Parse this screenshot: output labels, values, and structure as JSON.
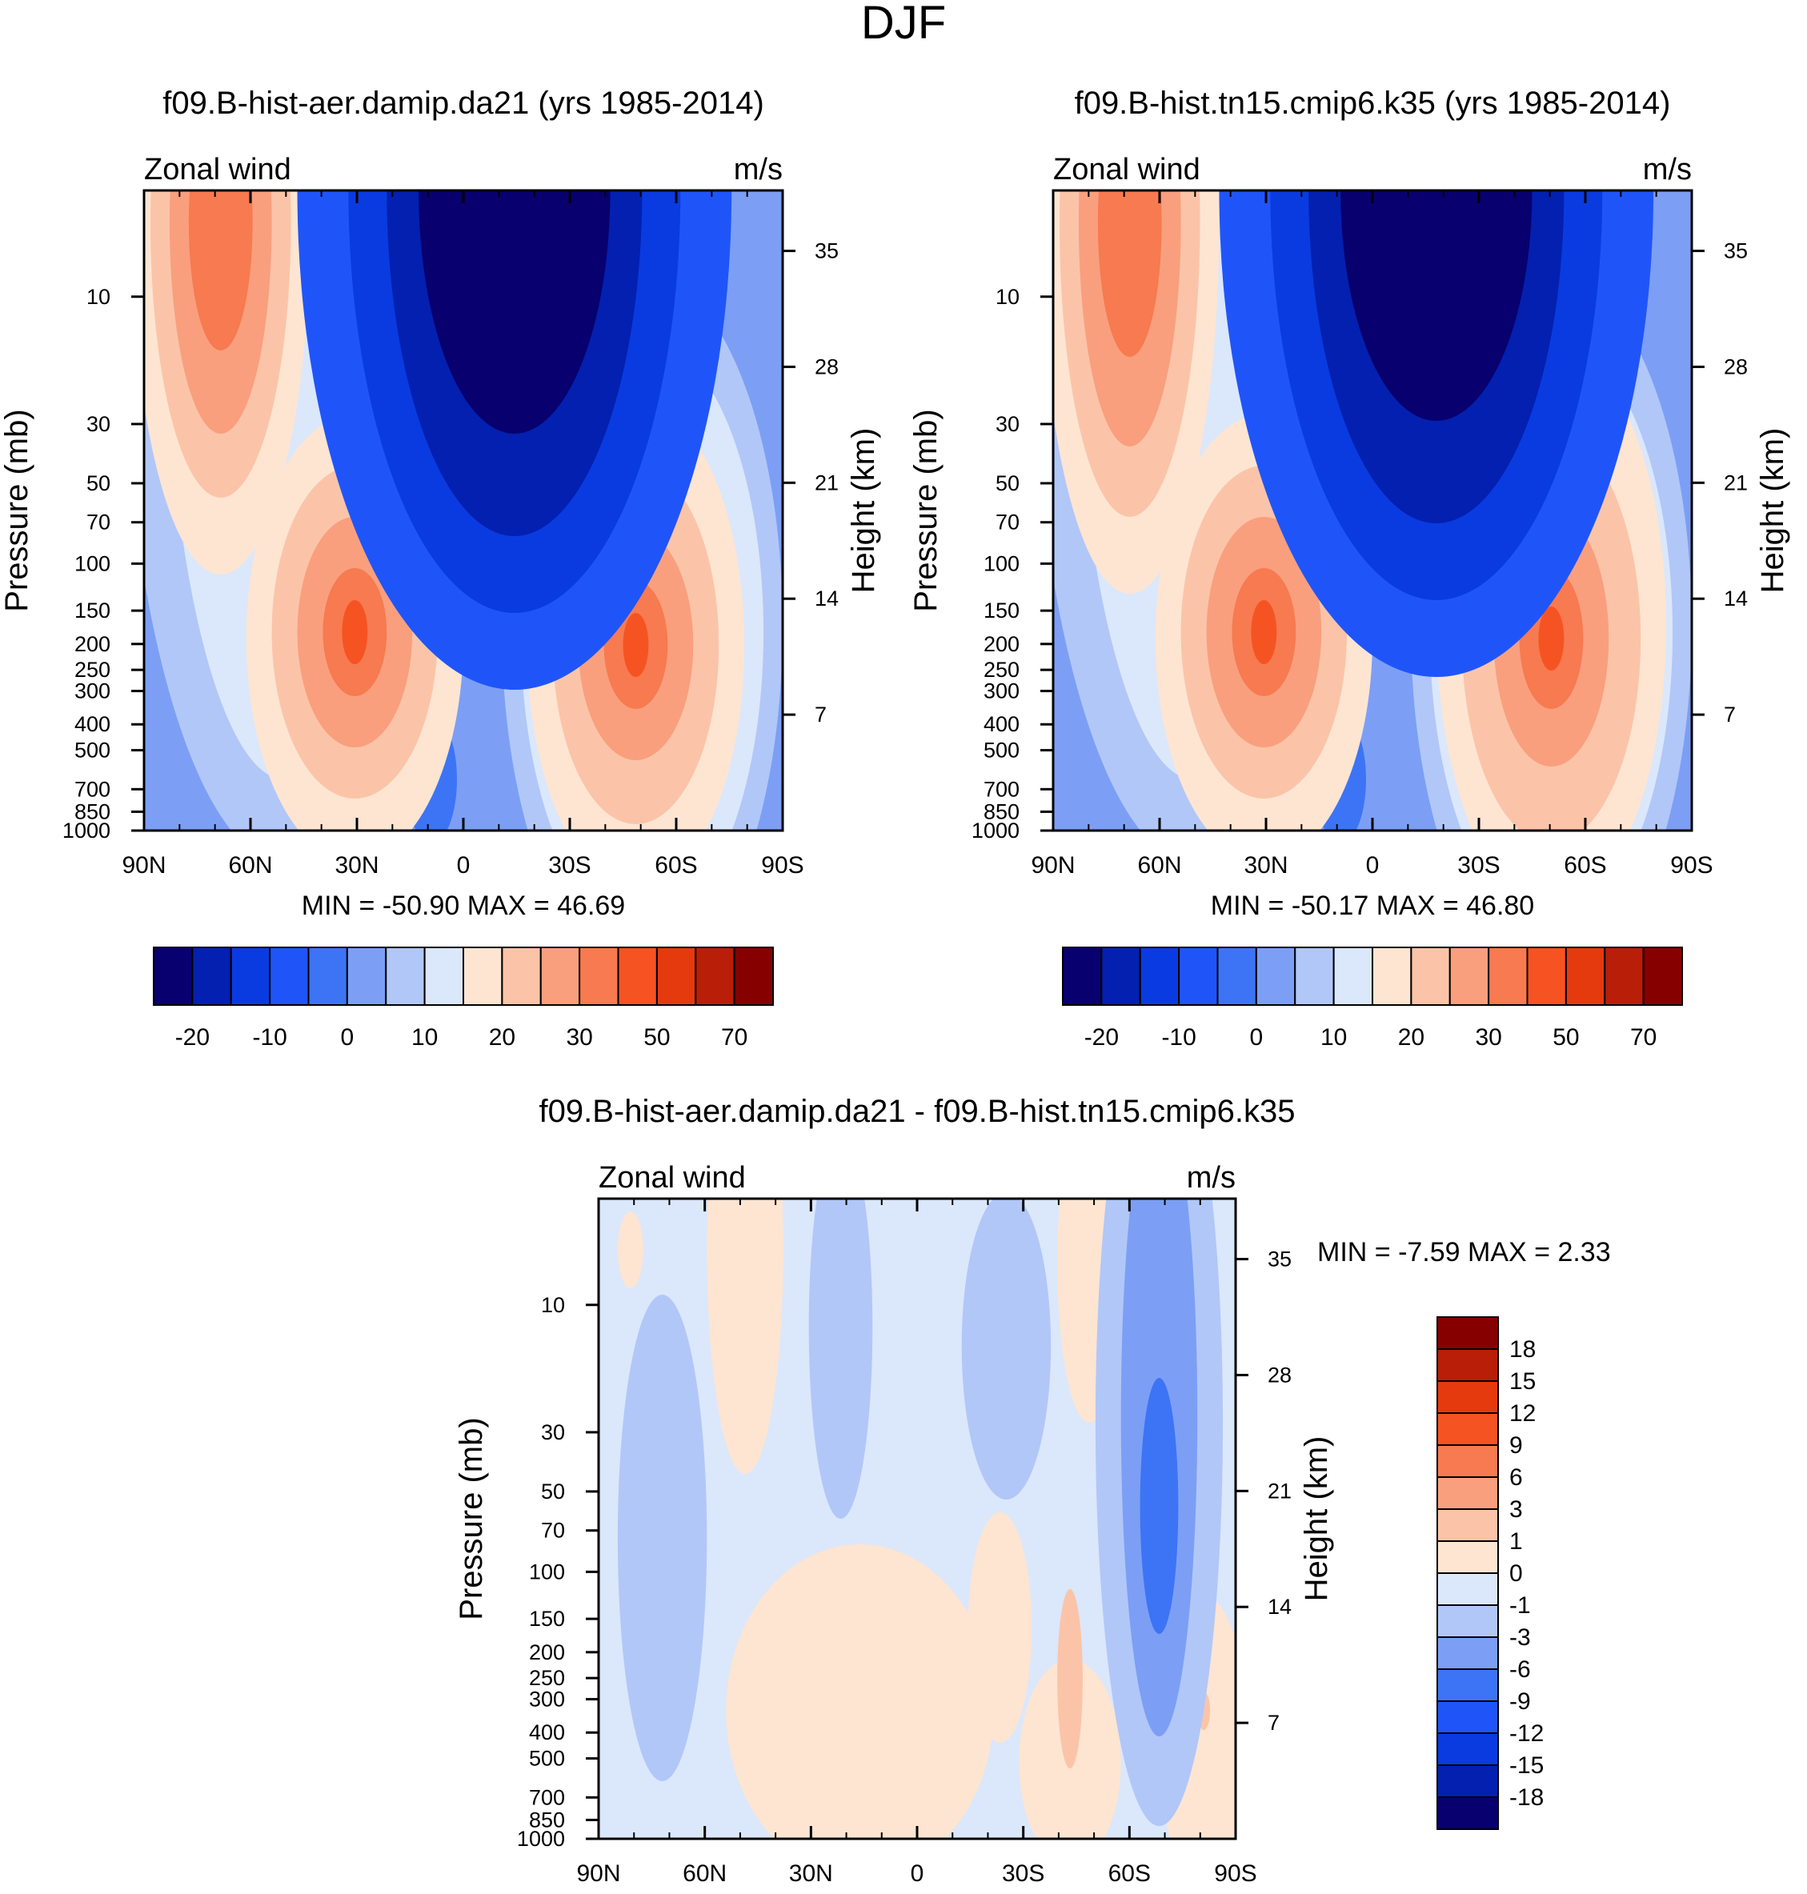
{
  "figure_title": "DJF",
  "chart_data": [
    {
      "type": "heatmap",
      "title": "f09.B-hist-aer.damip.da21 (yrs 1985-2014)",
      "left_label": "Zonal wind",
      "right_label": "m/s",
      "ylabel": "Pressure (mb)",
      "y2label": "Height (km)",
      "xticks": [
        "90N",
        "60N",
        "30N",
        "0",
        "30S",
        "60S",
        "90S"
      ],
      "yticks": [
        "10",
        "30",
        "50",
        "70",
        "100",
        "150",
        "200",
        "250",
        "300",
        "400",
        "500",
        "700",
        "850",
        "1000"
      ],
      "y2ticks": [
        "35",
        "28",
        "21",
        "14",
        "7"
      ],
      "minmax": "MIN = -50.90  MAX =  46.69",
      "colorbar_labels": [
        "-20",
        "-10",
        "0",
        "10",
        "20",
        "30",
        "50",
        "70"
      ],
      "colors": [
        "#08006e",
        "#0320b0",
        "#0a3be0",
        "#1f55f8",
        "#3d74f5",
        "#7c9ff5",
        "#b1c7f8",
        "#dbe7fb",
        "#fde5d2",
        "#fbc4a8",
        "#f99f7e",
        "#f77a50",
        "#f65322",
        "#e53a0e",
        "#b81e08",
        "#870000"
      ],
      "blobs": [
        {
          "cx": 0.12,
          "cy": 0.05,
          "rx": 0.14,
          "ry": 0.55,
          "c": 8
        },
        {
          "cx": 0.12,
          "cy": 0.05,
          "rx": 0.11,
          "ry": 0.43,
          "c": 9
        },
        {
          "cx": 0.12,
          "cy": 0.05,
          "rx": 0.08,
          "ry": 0.33,
          "c": 10
        },
        {
          "cx": 0.12,
          "cy": 0.05,
          "rx": 0.05,
          "ry": 0.2,
          "c": 11
        },
        {
          "cx": 0.33,
          "cy": 0.7,
          "rx": 0.17,
          "ry": 0.35,
          "c": 8
        },
        {
          "cx": 0.33,
          "cy": 0.69,
          "rx": 0.13,
          "ry": 0.26,
          "c": 9
        },
        {
          "cx": 0.33,
          "cy": 0.69,
          "rx": 0.09,
          "ry": 0.18,
          "c": 10
        },
        {
          "cx": 0.33,
          "cy": 0.69,
          "rx": 0.05,
          "ry": 0.1,
          "c": 11
        },
        {
          "cx": 0.33,
          "cy": 0.69,
          "rx": 0.02,
          "ry": 0.05,
          "c": 12
        },
        {
          "cx": 0.77,
          "cy": 0.71,
          "rx": 0.17,
          "ry": 0.38,
          "c": 8
        },
        {
          "cx": 0.77,
          "cy": 0.71,
          "rx": 0.13,
          "ry": 0.28,
          "c": 9
        },
        {
          "cx": 0.77,
          "cy": 0.71,
          "rx": 0.09,
          "ry": 0.18,
          "c": 10
        },
        {
          "cx": 0.77,
          "cy": 0.71,
          "rx": 0.05,
          "ry": 0.1,
          "c": 11
        },
        {
          "cx": 0.77,
          "cy": 0.71,
          "rx": 0.02,
          "ry": 0.05,
          "c": 12
        },
        {
          "cx": 0.58,
          "cy": 0.0,
          "rx": 0.34,
          "ry": 0.78,
          "c": 3
        },
        {
          "cx": 0.58,
          "cy": 0.0,
          "rx": 0.26,
          "ry": 0.66,
          "c": 2
        },
        {
          "cx": 0.58,
          "cy": 0.0,
          "rx": 0.2,
          "ry": 0.54,
          "c": 1
        },
        {
          "cx": 0.58,
          "cy": 0.0,
          "rx": 0.15,
          "ry": 0.38,
          "c": 0
        }
      ]
    },
    {
      "type": "heatmap",
      "title": "f09.B-hist.tn15.cmip6.k35 (yrs 1985-2014)",
      "left_label": "Zonal wind",
      "right_label": "m/s",
      "ylabel": "Pressure (mb)",
      "y2label": "Height (km)",
      "xticks": [
        "90N",
        "60N",
        "30N",
        "0",
        "30S",
        "60S",
        "90S"
      ],
      "yticks": [
        "10",
        "30",
        "50",
        "70",
        "100",
        "150",
        "200",
        "250",
        "300",
        "400",
        "500",
        "700",
        "850",
        "1000"
      ],
      "y2ticks": [
        "35",
        "28",
        "21",
        "14",
        "7"
      ],
      "minmax": "MIN = -50.17  MAX =  46.80",
      "colorbar_labels": [
        "-20",
        "-10",
        "0",
        "10",
        "20",
        "30",
        "50",
        "70"
      ],
      "colors": [
        "#08006e",
        "#0320b0",
        "#0a3be0",
        "#1f55f8",
        "#3d74f5",
        "#7c9ff5",
        "#b1c7f8",
        "#dbe7fb",
        "#fde5d2",
        "#fbc4a8",
        "#f99f7e",
        "#f77a50",
        "#f65322",
        "#e53a0e",
        "#b81e08",
        "#870000"
      ],
      "blobs": [
        {
          "cx": 0.12,
          "cy": 0.05,
          "rx": 0.14,
          "ry": 0.58,
          "c": 8
        },
        {
          "cx": 0.12,
          "cy": 0.05,
          "rx": 0.11,
          "ry": 0.46,
          "c": 9
        },
        {
          "cx": 0.12,
          "cy": 0.05,
          "rx": 0.08,
          "ry": 0.35,
          "c": 10
        },
        {
          "cx": 0.12,
          "cy": 0.05,
          "rx": 0.05,
          "ry": 0.21,
          "c": 11
        },
        {
          "cx": 0.33,
          "cy": 0.7,
          "rx": 0.17,
          "ry": 0.35,
          "c": 8
        },
        {
          "cx": 0.33,
          "cy": 0.69,
          "rx": 0.13,
          "ry": 0.26,
          "c": 9
        },
        {
          "cx": 0.33,
          "cy": 0.69,
          "rx": 0.09,
          "ry": 0.18,
          "c": 10
        },
        {
          "cx": 0.33,
          "cy": 0.69,
          "rx": 0.05,
          "ry": 0.1,
          "c": 11
        },
        {
          "cx": 0.33,
          "cy": 0.69,
          "rx": 0.02,
          "ry": 0.05,
          "c": 12
        },
        {
          "cx": 0.78,
          "cy": 0.68,
          "rx": 0.18,
          "ry": 0.44,
          "c": 8
        },
        {
          "cx": 0.78,
          "cy": 0.7,
          "rx": 0.14,
          "ry": 0.32,
          "c": 9
        },
        {
          "cx": 0.78,
          "cy": 0.7,
          "rx": 0.09,
          "ry": 0.2,
          "c": 10
        },
        {
          "cx": 0.78,
          "cy": 0.7,
          "rx": 0.05,
          "ry": 0.11,
          "c": 11
        },
        {
          "cx": 0.78,
          "cy": 0.7,
          "rx": 0.02,
          "ry": 0.05,
          "c": 12
        },
        {
          "cx": 0.6,
          "cy": 0.0,
          "rx": 0.34,
          "ry": 0.76,
          "c": 3
        },
        {
          "cx": 0.6,
          "cy": 0.0,
          "rx": 0.26,
          "ry": 0.64,
          "c": 2
        },
        {
          "cx": 0.6,
          "cy": 0.0,
          "rx": 0.2,
          "ry": 0.52,
          "c": 1
        },
        {
          "cx": 0.6,
          "cy": 0.0,
          "rx": 0.15,
          "ry": 0.36,
          "c": 0
        }
      ]
    },
    {
      "type": "heatmap",
      "title": "f09.B-hist-aer.damip.da21 - f09.B-hist.tn15.cmip6.k35",
      "left_label": "Zonal wind",
      "right_label": "m/s",
      "ylabel": "Pressure (mb)",
      "y2label": "Height (km)",
      "xticks": [
        "90N",
        "60N",
        "30N",
        "0",
        "30S",
        "60S",
        "90S"
      ],
      "yticks": [
        "10",
        "30",
        "50",
        "70",
        "100",
        "150",
        "200",
        "250",
        "300",
        "400",
        "500",
        "700",
        "850",
        "1000"
      ],
      "y2ticks": [
        "35",
        "28",
        "21",
        "14",
        "7"
      ],
      "minmax": "MIN =  -7.59  MAX =   2.33",
      "colorbar_labels": [
        "18",
        "15",
        "12",
        "9",
        "6",
        "3",
        "1",
        "0",
        "-1",
        "-3",
        "-6",
        "-9",
        "-12",
        "-15",
        "-18"
      ],
      "colors": [
        "#870000",
        "#b81e08",
        "#e53a0e",
        "#f65322",
        "#f77a50",
        "#f99f7e",
        "#fbc4a8",
        "#fde5d2",
        "#dbe7fb",
        "#b1c7f8",
        "#7c9ff5",
        "#3d74f5",
        "#1f55f8",
        "#0a3be0",
        "#0320b0",
        "#08006e"
      ],
      "blobs": [
        {
          "cx": 0.23,
          "cy": 0.08,
          "rx": 0.06,
          "ry": 0.35,
          "c": 7
        },
        {
          "cx": 0.05,
          "cy": 0.08,
          "rx": 0.02,
          "ry": 0.06,
          "c": 7
        },
        {
          "cx": 0.41,
          "cy": 0.8,
          "rx": 0.21,
          "ry": 0.26,
          "c": 7
        },
        {
          "cx": 0.63,
          "cy": 0.67,
          "rx": 0.05,
          "ry": 0.18,
          "c": 7
        },
        {
          "cx": 0.74,
          "cy": 0.88,
          "rx": 0.08,
          "ry": 0.16,
          "c": 7
        },
        {
          "cx": 0.77,
          "cy": 0.1,
          "rx": 0.05,
          "ry": 0.25,
          "c": 7
        },
        {
          "cx": 0.74,
          "cy": 0.75,
          "rx": 0.02,
          "ry": 0.14,
          "c": 6
        },
        {
          "cx": 0.95,
          "cy": 0.85,
          "rx": 0.07,
          "ry": 0.23,
          "c": 7
        },
        {
          "cx": 0.95,
          "cy": 0.8,
          "rx": 0.01,
          "ry": 0.03,
          "c": 6
        },
        {
          "cx": 0.1,
          "cy": 0.53,
          "rx": 0.07,
          "ry": 0.38,
          "c": 9
        },
        {
          "cx": 0.38,
          "cy": 0.2,
          "rx": 0.05,
          "ry": 0.3,
          "c": 9
        },
        {
          "cx": 0.64,
          "cy": 0.23,
          "rx": 0.07,
          "ry": 0.24,
          "c": 9
        },
        {
          "cx": 0.88,
          "cy": 0.35,
          "rx": 0.1,
          "ry": 0.63,
          "c": 9
        },
        {
          "cx": 0.88,
          "cy": 0.34,
          "rx": 0.06,
          "ry": 0.5,
          "c": 10
        },
        {
          "cx": 0.88,
          "cy": 0.48,
          "rx": 0.03,
          "ry": 0.2,
          "c": 11
        }
      ]
    }
  ]
}
